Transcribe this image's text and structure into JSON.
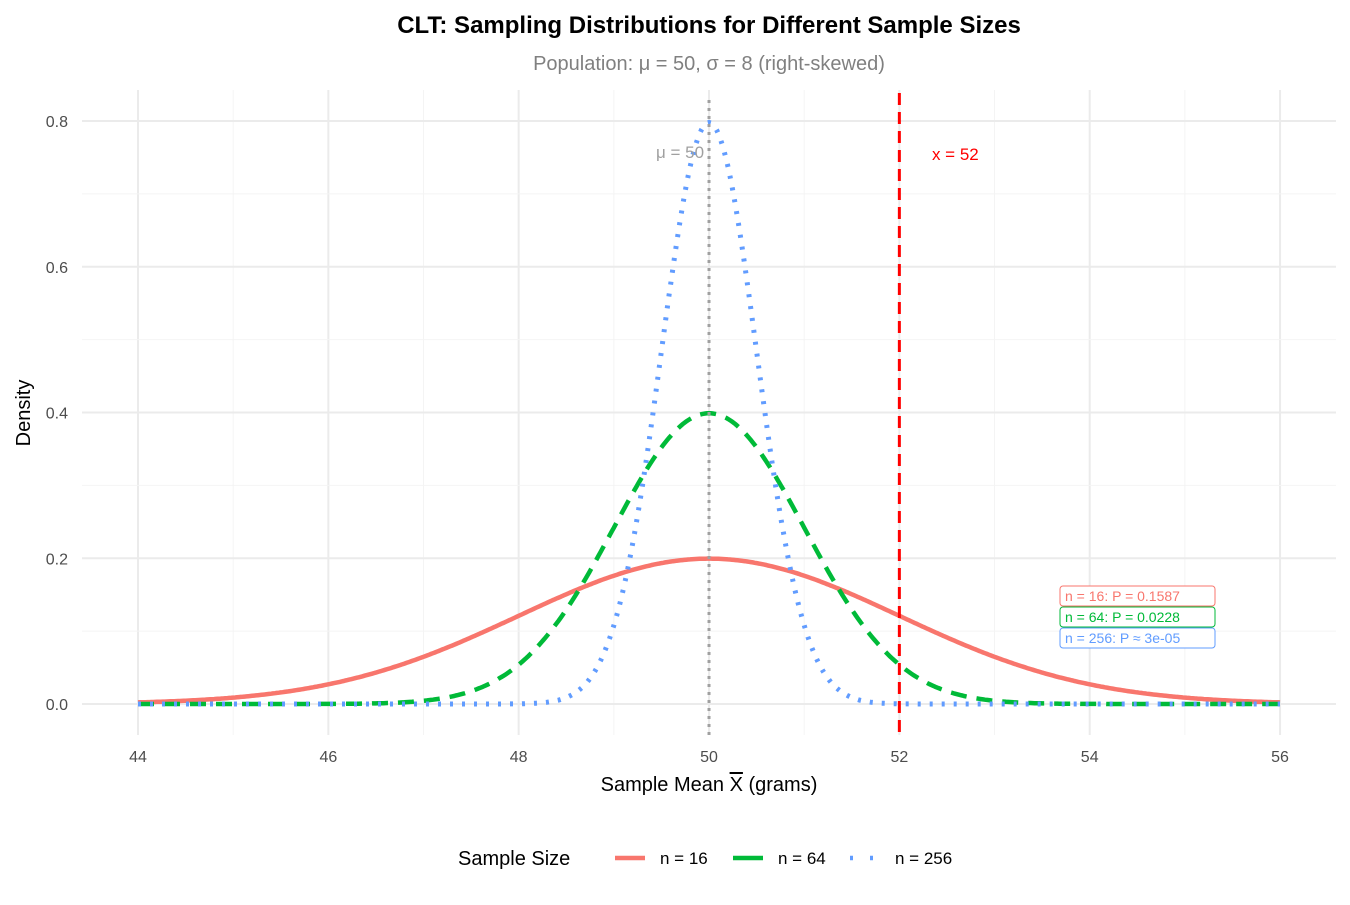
{
  "chart_data": {
    "type": "line",
    "title": "CLT: Sampling Distributions for Different Sample Sizes",
    "subtitle": "Population: μ = 50, σ = 8 (right-skewed)",
    "xlabel": "Sample Mean X̄ (grams)",
    "xlabel_main": "Sample Mean ",
    "xlabel_bar": "X",
    "xlabel_unit": " (grams)",
    "ylabel": "Density",
    "xlim": [
      44,
      56
    ],
    "ylim": [
      0,
      0.8
    ],
    "xticks": [
      44,
      46,
      48,
      50,
      52,
      54,
      56
    ],
    "yticks": [
      "0.0",
      "0.2",
      "0.4",
      "0.6",
      "0.8"
    ],
    "grid": true,
    "series": [
      {
        "name": "n = 16",
        "mean": 50,
        "sd": 2,
        "color": "#F8766D",
        "dash": "solid"
      },
      {
        "name": "n = 64",
        "mean": 50,
        "sd": 1,
        "color": "#00BA38",
        "dash": "dashed"
      },
      {
        "name": "n = 256",
        "mean": 50,
        "sd": 0.5,
        "color": "#619CFF",
        "dash": "dotted"
      }
    ],
    "vlines": [
      {
        "x": 50,
        "label": "μ = 50",
        "color": "#A0A0A0"
      },
      {
        "x": 52,
        "label": "x = 52",
        "color": "#FF0000"
      }
    ],
    "annotations": [
      "n = 16: P = 0.1587",
      "n = 64: P = 0.0228",
      "n = 256: P ≈ 3e-05"
    ],
    "legend": {
      "title": "Sample Size",
      "placement": "bottom"
    }
  }
}
